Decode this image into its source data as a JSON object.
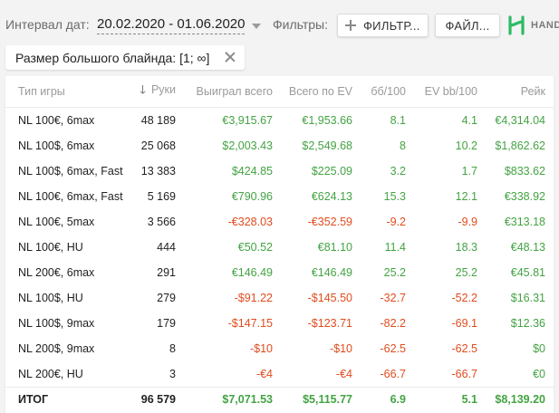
{
  "toolbar": {
    "interval_label": "Интервал дат:",
    "date_range": "20.02.2020 - 01.06.2020",
    "filters_label": "Фильтры:",
    "filters_button": "ФИЛЬТР...",
    "file_button": "ФАЙЛ...",
    "brand_text": "HAND"
  },
  "chip": {
    "label": "Размер большого блайнда: [1; ∞]"
  },
  "colors": {
    "positive": "#43a343",
    "negative": "#e04c1d",
    "brand_green": "#2dbb64"
  },
  "table": {
    "columns": [
      "Тип игры",
      "Руки",
      "Выиграл всего",
      "Всего по EV",
      "бб/100",
      "EV bb/100",
      "Рейк"
    ],
    "sort_icon": "arrow-down-icon",
    "rows": [
      [
        "NL 100€, 6max",
        "48 189",
        "€3,915.67",
        "€1,953.66",
        "8.1",
        "4.1",
        "€4,314.04"
      ],
      [
        "NL 100$, 6max",
        "25 068",
        "$2,003.43",
        "$2,549.68",
        "8",
        "10.2",
        "$1,862.62"
      ],
      [
        "NL 100$, 6max, Fast",
        "13 383",
        "$424.85",
        "$225.09",
        "3.2",
        "1.7",
        "$833.62"
      ],
      [
        "NL 100€, 6max, Fast",
        "5 169",
        "€790.96",
        "€624.13",
        "15.3",
        "12.1",
        "€338.92"
      ],
      [
        "NL 100€, 5max",
        "3 566",
        "-€328.03",
        "-€352.59",
        "-9.2",
        "-9.9",
        "€313.18"
      ],
      [
        "NL 100€, HU",
        "444",
        "€50.52",
        "€81.10",
        "11.4",
        "18.3",
        "€48.13"
      ],
      [
        "NL 200€, 6max",
        "291",
        "€146.49",
        "€146.49",
        "25.2",
        "25.2",
        "€45.81"
      ],
      [
        "NL 100$, HU",
        "279",
        "-$91.22",
        "-$145.50",
        "-32.7",
        "-52.2",
        "$16.31"
      ],
      [
        "NL 100$, 9max",
        "179",
        "-$147.15",
        "-$123.71",
        "-82.2",
        "-69.1",
        "$12.36"
      ],
      [
        "NL 200$, 9max",
        "8",
        "-$10",
        "-$10",
        "-62.5",
        "-62.5",
        "$0"
      ],
      [
        "NL 200€, HU",
        "3",
        "-€4",
        "-€4",
        "-66.7",
        "-66.7",
        "€0"
      ]
    ],
    "total": [
      "ИТОГ",
      "96 579",
      "$7,071.53",
      "$5,115.77",
      "6.9",
      "5.1",
      "$8,139.20"
    ]
  }
}
